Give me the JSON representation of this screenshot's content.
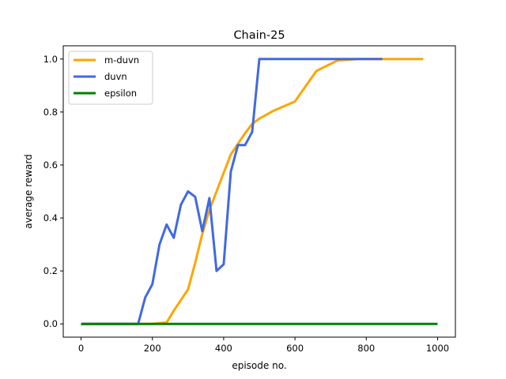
{
  "chart_data": {
    "type": "line",
    "title": "Chain-25",
    "xlabel": "episode no.",
    "ylabel": "average reward",
    "xlim": [
      -50,
      1050
    ],
    "ylim": [
      -0.05,
      1.05
    ],
    "xticks": [
      0,
      200,
      400,
      600,
      800,
      1000
    ],
    "yticks": [
      0.0,
      0.2,
      0.4,
      0.6,
      0.8,
      1.0
    ],
    "xtick_labels": [
      "0",
      "200",
      "400",
      "600",
      "800",
      "1000"
    ],
    "ytick_labels": [
      "0.0",
      "0.2",
      "0.4",
      "0.6",
      "0.8",
      "1.0"
    ],
    "grid": false,
    "legend": "top-left",
    "series": [
      {
        "name": "m-duvn",
        "color": "#ffa500",
        "x": [
          0,
          160,
          180,
          200,
          220,
          240,
          260,
          280,
          300,
          320,
          340,
          360,
          380,
          400,
          420,
          440,
          460,
          480,
          500,
          540,
          600,
          660,
          720,
          780,
          840,
          900,
          960
        ],
        "y": [
          0.0,
          0.0,
          0.0,
          0.0,
          0.003,
          0.005,
          0.05,
          0.09,
          0.13,
          0.23,
          0.34,
          0.43,
          0.5,
          0.57,
          0.64,
          0.68,
          0.72,
          0.755,
          0.775,
          0.805,
          0.84,
          0.955,
          0.995,
          1.0,
          1.0,
          1.0,
          1.0
        ]
      },
      {
        "name": "duvn",
        "color": "#4169e1",
        "x": [
          0,
          160,
          180,
          200,
          220,
          240,
          260,
          280,
          300,
          320,
          340,
          360,
          380,
          400,
          420,
          440,
          460,
          480,
          500,
          540,
          600,
          660,
          720,
          780,
          845
        ],
        "y": [
          0.0,
          0.0,
          0.1,
          0.15,
          0.3,
          0.375,
          0.325,
          0.45,
          0.5,
          0.48,
          0.35,
          0.475,
          0.2,
          0.225,
          0.575,
          0.675,
          0.675,
          0.725,
          1.0,
          1.0,
          1.0,
          1.0,
          1.0,
          1.0,
          1.0
        ]
      },
      {
        "name": "epsilon",
        "color": "#008000",
        "x": [
          0,
          200,
          400,
          600,
          800,
          1000
        ],
        "y": [
          0.0,
          0.0,
          0.0,
          0.0,
          0.0,
          0.0
        ]
      }
    ]
  }
}
